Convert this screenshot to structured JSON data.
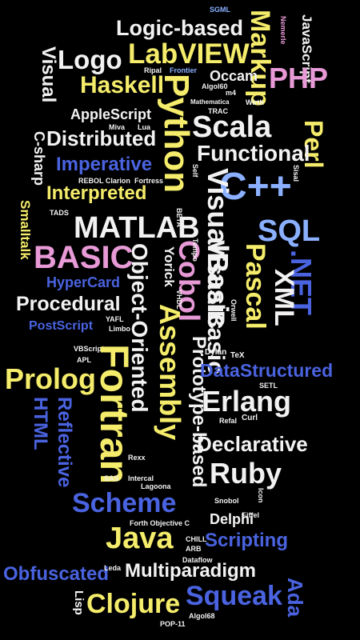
{
  "colors": {
    "background": "#000000",
    "white": "#f2f2f2",
    "yellow": "#f4ec6a",
    "blue": "#4a63e0",
    "lightblue": "#8ab0ff",
    "pink": "#e79ad6",
    "lavender": "#b8b8ff"
  },
  "words": {
    "logic_based": "Logic-based",
    "markup": "Markup",
    "javascript": "JavaScript",
    "logo": "Logo",
    "labview": "LabVIEW",
    "visual": "Visual",
    "haskell": "Haskell",
    "occam": "Occam",
    "php": "PHP",
    "python": "Python",
    "applescript": "AppleScript",
    "scala": "Scala",
    "perl": "Perl",
    "c_sharp": "C-sharp",
    "distributed": "Distributed",
    "functional": "Functional",
    "imperative": "Imperative",
    "interpreted": "Interpreted",
    "cpp": "C++",
    "smalltalk": "Smalltalk",
    "matlab": "MATLAB",
    "visualbasic": "VisualBasic",
    "sql": "SQL",
    "basic": "BASIC",
    "object_oriented": "Object-Oriented",
    "cobol": "Cobol",
    "net": ".NET",
    "hypercard": "HyperCard",
    "xml": "XML",
    "pascal": "Pascal",
    "procedural": "Procedural",
    "postscript": "PostScript",
    "assembly": "Assembly",
    "prolog": "Prolog",
    "fortran": "Fortran",
    "prototype_based": "Prototype-based",
    "datastructured": "DataStructured",
    "html": "HTML",
    "reflective": "Reflective",
    "erlang": "Erlang",
    "declarative": "Declarative",
    "ruby": "Ruby",
    "scheme": "Scheme",
    "java": "Java",
    "delphi": "Delphi",
    "scripting": "Scripting",
    "obfuscated": "Obfuscated",
    "multiparadigm": "Multiparadigm",
    "lisp": "Lisp",
    "clojure": "Clojure",
    "squeak": "Squeak",
    "ada": "Ada",
    "pop_11": "POP-11",
    "yorick": "Yorick",
    "tads": "TADS",
    "rebol_clarion": "REBOL Clarion",
    "fortress": "Fortress",
    "mathematica": "Mathematica",
    "algol60": "Algol60",
    "trac": "TRAC",
    "wirth": "Wirth",
    "vbscript": "VBScript",
    "apl": "APL",
    "yafl": "YAFL",
    "limbo": "Limbo",
    "vhdl": "VHDL",
    "dylan": "Dylan",
    "tex": "TeX",
    "setl": "SETL",
    "curl": "Curl",
    "refal": "Refal",
    "sas": "SAS",
    "intercal": "Intercal",
    "lagoona": "Lagoona",
    "snobol": "Snobol",
    "icon": "Icon",
    "forth": "Forth",
    "objective_c": "Objective C",
    "arb": "ARB",
    "dataflow": "Dataflow",
    "chill": "CHILL",
    "leda": "Leda",
    "algol68": "Algol68",
    "frontier": "Frontier",
    "self": "Self",
    "sisal": "Sisal",
    "miva": "Miva",
    "lua": "Lua",
    "beta": "BETA",
    "rexx": "Rexx",
    "eiffel": "Eiffel",
    "m4": "m4",
    "ripal": "Ripal",
    "tempo": "Tempo",
    "orwell": "Orwell",
    "sgml": "SGML",
    "nemerle": "Nemerle"
  }
}
